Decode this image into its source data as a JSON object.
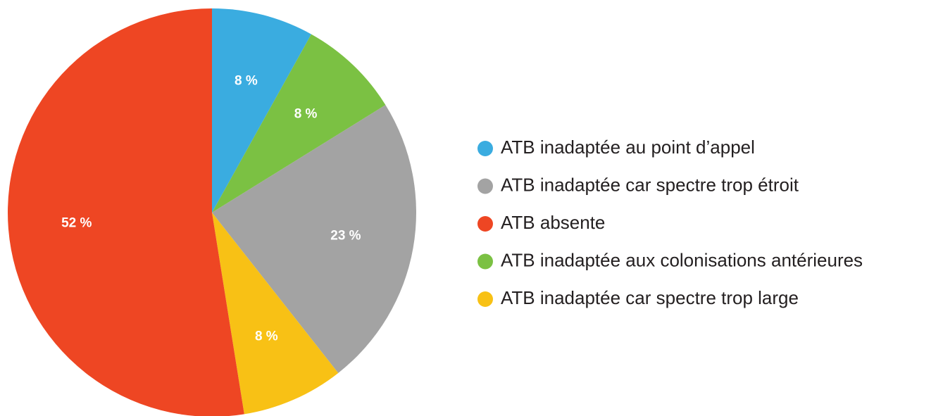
{
  "chart_data": {
    "type": "pie",
    "categories": [
      "ATB inadaptée au point d’appel",
      "ATB inadaptée car spectre trop étroit",
      "ATB absente",
      "ATB inadaptée aux colonisations antérieures",
      "ATB inadaptée car spectre trop large"
    ],
    "values": [
      8,
      23,
      52,
      8,
      8
    ],
    "value_labels": [
      "8 %",
      "23 %",
      "52 %",
      "8 %",
      "8 %"
    ],
    "colors": [
      "#3aace0",
      "#a3a3a3",
      "#ee4623",
      "#7bc143",
      "#f8c115"
    ],
    "slice_order": [
      0,
      3,
      1,
      4,
      2
    ],
    "legend": "right"
  }
}
